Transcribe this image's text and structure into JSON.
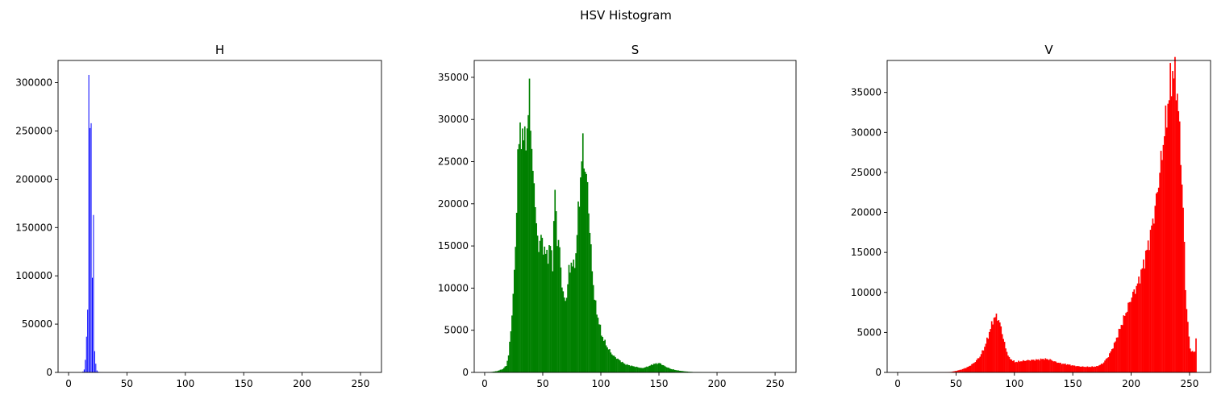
{
  "figure": {
    "suptitle": "HSV Histogram"
  },
  "chart_data": [
    {
      "type": "bar",
      "title": "H",
      "color": "#0000ff",
      "xlim": [
        -9,
        268
      ],
      "ylim": [
        0,
        323000
      ],
      "xticks": [
        0,
        50,
        100,
        150,
        200,
        250
      ],
      "yticks": [
        0,
        50000,
        100000,
        150000,
        200000,
        250000,
        300000
      ],
      "x": [
        12,
        13,
        14,
        15,
        16,
        17,
        18,
        19,
        20,
        21,
        22,
        23,
        24,
        25,
        26,
        27,
        28,
        29,
        30
      ],
      "values": [
        1000,
        3000,
        13000,
        37000,
        65000,
        308000,
        253000,
        258000,
        98000,
        163000,
        22000,
        9000,
        2000,
        700,
        300,
        200,
        100,
        50,
        20
      ]
    },
    {
      "type": "bar",
      "title": "S",
      "color": "#008000",
      "xlim": [
        -9,
        268
      ],
      "ylim": [
        0,
        37000
      ],
      "xticks": [
        0,
        50,
        100,
        150,
        200,
        250
      ],
      "yticks": [
        0,
        5000,
        10000,
        15000,
        20000,
        25000,
        30000,
        35000
      ],
      "x": [
        0,
        5,
        10,
        15,
        18,
        20,
        22,
        24,
        26,
        28,
        30,
        32,
        34,
        36,
        38,
        40,
        42,
        44,
        46,
        48,
        50,
        52,
        54,
        56,
        58,
        60,
        62,
        64,
        66,
        68,
        70,
        72,
        74,
        76,
        78,
        80,
        82,
        84,
        86,
        88,
        90,
        92,
        94,
        96,
        98,
        100,
        105,
        110,
        115,
        120,
        125,
        130,
        135,
        140,
        145,
        150,
        155,
        160,
        165,
        170,
        175,
        180,
        190,
        200,
        220,
        255
      ],
      "values": [
        0,
        50,
        150,
        400,
        800,
        2000,
        5000,
        9000,
        15000,
        25000,
        29500,
        27000,
        29000,
        27000,
        35000,
        25000,
        23000,
        17000,
        15000,
        16000,
        15000,
        14000,
        14000,
        15000,
        13000,
        21500,
        16000,
        14500,
        10500,
        8500,
        9000,
        12000,
        13000,
        12500,
        14000,
        19000,
        23000,
        27000,
        24000,
        22000,
        17000,
        12000,
        9000,
        7000,
        6000,
        4500,
        3000,
        2000,
        1500,
        1000,
        800,
        650,
        500,
        700,
        1000,
        1100,
        700,
        400,
        250,
        150,
        80,
        40,
        15,
        5,
        0,
        0
      ]
    },
    {
      "type": "bar",
      "title": "V",
      "color": "#ff0000",
      "xlim": [
        -9,
        268
      ],
      "ylim": [
        0,
        39000
      ],
      "xticks": [
        0,
        50,
        100,
        150,
        200,
        250
      ],
      "yticks": [
        0,
        5000,
        10000,
        15000,
        20000,
        25000,
        30000,
        35000
      ],
      "x": [
        0,
        10,
        20,
        30,
        40,
        45,
        50,
        55,
        60,
        65,
        70,
        74,
        77,
        80,
        82,
        84,
        86,
        88,
        90,
        92,
        95,
        100,
        105,
        110,
        115,
        120,
        125,
        130,
        135,
        140,
        145,
        150,
        155,
        160,
        165,
        170,
        175,
        180,
        185,
        190,
        195,
        200,
        205,
        210,
        215,
        220,
        224,
        228,
        231,
        233,
        235,
        237,
        239,
        241,
        243,
        245,
        246,
        248,
        250,
        252,
        253,
        254,
        255
      ],
      "values": [
        0,
        0,
        0,
        0,
        20,
        60,
        200,
        400,
        700,
        1200,
        2000,
        3200,
        4500,
        6000,
        6800,
        7000,
        6600,
        5600,
        4300,
        3000,
        1800,
        1300,
        1400,
        1500,
        1550,
        1600,
        1700,
        1600,
        1300,
        1100,
        1000,
        850,
        750,
        700,
        700,
        750,
        1100,
        2000,
        3500,
        5500,
        7500,
        9500,
        11000,
        13500,
        16500,
        20500,
        25000,
        30000,
        33500,
        36000,
        37500,
        37000,
        35000,
        30000,
        24000,
        16000,
        10500,
        6000,
        3000,
        2500,
        2600,
        2600,
        4500
      ]
    }
  ]
}
